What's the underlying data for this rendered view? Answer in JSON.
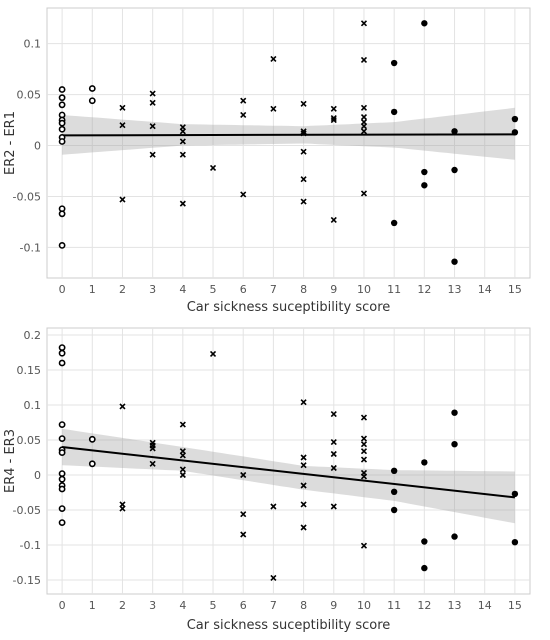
{
  "chart_data": [
    {
      "type": "scatter",
      "xlabel": "Car sickness suceptibility score",
      "ylabel": "ER2 - ER1",
      "xlim": [
        -0.5,
        15.5
      ],
      "ylim": [
        -0.13,
        0.135
      ],
      "x_ticks": [
        0,
        1,
        2,
        3,
        4,
        5,
        6,
        7,
        8,
        9,
        10,
        11,
        12,
        13,
        14,
        15
      ],
      "y_ticks": [
        -0.1,
        -0.05,
        0,
        0.05,
        0.1
      ],
      "y_tick_labels": [
        "-0.1",
        "-0.05",
        "0",
        "0.05",
        "0.1"
      ],
      "grid": true,
      "regression": {
        "x": [
          0,
          15
        ],
        "y": [
          0.01,
          0.011
        ]
      },
      "confidence_band": {
        "x": [
          0,
          4,
          8,
          11,
          15
        ],
        "upper": [
          0.03,
          0.021,
          0.019,
          0.023,
          0.037
        ],
        "lower": [
          -0.009,
          0.0,
          0.002,
          -0.002,
          -0.014
        ]
      },
      "series": [
        {
          "marker": "open-circle",
          "points": [
            [
              0,
              0.055
            ],
            [
              0,
              0.047
            ],
            [
              0,
              0.04
            ],
            [
              0,
              0.03
            ],
            [
              0,
              0.025
            ],
            [
              0,
              0.022
            ],
            [
              0,
              0.016
            ],
            [
              0,
              0.008
            ],
            [
              0,
              0.004
            ],
            [
              0,
              -0.062
            ],
            [
              0,
              -0.067
            ],
            [
              0,
              -0.098
            ],
            [
              1,
              0.056
            ],
            [
              1,
              0.044
            ]
          ]
        },
        {
          "marker": "cross",
          "points": [
            [
              2,
              0.037
            ],
            [
              2,
              0.02
            ],
            [
              2,
              -0.053
            ],
            [
              3,
              0.051
            ],
            [
              3,
              0.042
            ],
            [
              3,
              0.019
            ],
            [
              3,
              -0.009
            ],
            [
              4,
              0.018
            ],
            [
              4,
              0.014
            ],
            [
              4,
              0.004
            ],
            [
              4,
              -0.009
            ],
            [
              4,
              -0.057
            ],
            [
              5,
              -0.022
            ],
            [
              6,
              0.044
            ],
            [
              6,
              0.03
            ],
            [
              6,
              -0.048
            ],
            [
              7,
              0.085
            ],
            [
              7,
              0.036
            ],
            [
              8,
              0.041
            ],
            [
              8,
              0.014
            ],
            [
              8,
              0.012
            ],
            [
              8,
              -0.006
            ],
            [
              8,
              -0.033
            ],
            [
              8,
              -0.055
            ],
            [
              9,
              0.036
            ],
            [
              9,
              0.027
            ],
            [
              9,
              0.025
            ],
            [
              9,
              -0.073
            ],
            [
              10,
              0.12
            ],
            [
              10,
              0.084
            ],
            [
              10,
              0.037
            ],
            [
              10,
              0.028
            ],
            [
              10,
              0.023
            ],
            [
              10,
              0.019
            ],
            [
              10,
              0.014
            ],
            [
              10,
              -0.047
            ]
          ]
        },
        {
          "marker": "filled-circle",
          "points": [
            [
              11,
              0.081
            ],
            [
              11,
              0.033
            ],
            [
              11,
              -0.076
            ],
            [
              12,
              0.12
            ],
            [
              12,
              -0.026
            ],
            [
              12,
              -0.039
            ],
            [
              13,
              0.014
            ],
            [
              13,
              -0.024
            ],
            [
              13,
              -0.114
            ],
            [
              15,
              0.026
            ],
            [
              15,
              0.013
            ]
          ]
        }
      ]
    },
    {
      "type": "scatter",
      "xlabel": "Car sickness suceptibility score",
      "ylabel": "ER4 - ER3",
      "xlim": [
        -0.5,
        15.5
      ],
      "ylim": [
        -0.17,
        0.21
      ],
      "x_ticks": [
        0,
        1,
        2,
        3,
        4,
        5,
        6,
        7,
        8,
        9,
        10,
        11,
        12,
        13,
        14,
        15
      ],
      "y_ticks": [
        -0.15,
        -0.1,
        -0.05,
        0,
        0.05,
        0.1,
        0.15,
        0.2
      ],
      "y_tick_labels": [
        "-0.15",
        "-0.1",
        "-0.05",
        "0",
        "0.05",
        "0.1",
        "0.15",
        "0.2"
      ],
      "grid": true,
      "regression": {
        "x": [
          0,
          15
        ],
        "y": [
          0.04,
          -0.032
        ]
      },
      "confidence_band": {
        "x": [
          0,
          4,
          8,
          11,
          15
        ],
        "upper": [
          0.066,
          0.04,
          0.013,
          0.007,
          0.005
        ],
        "lower": [
          0.014,
          0.006,
          -0.021,
          -0.037,
          -0.069
        ]
      },
      "series": [
        {
          "marker": "open-circle",
          "points": [
            [
              0,
              0.182
            ],
            [
              0,
              0.174
            ],
            [
              0,
              0.16
            ],
            [
              0,
              0.072
            ],
            [
              0,
              0.052
            ],
            [
              0,
              0.036
            ],
            [
              0,
              0.032
            ],
            [
              0,
              0.002
            ],
            [
              0,
              -0.006
            ],
            [
              0,
              -0.015
            ],
            [
              0,
              -0.02
            ],
            [
              0,
              -0.048
            ],
            [
              0,
              -0.068
            ],
            [
              1,
              0.051
            ],
            [
              1,
              0.016
            ]
          ]
        },
        {
          "marker": "cross",
          "points": [
            [
              2,
              0.098
            ],
            [
              2,
              -0.042
            ],
            [
              2,
              -0.048
            ],
            [
              3,
              0.046
            ],
            [
              3,
              0.042
            ],
            [
              3,
              0.038
            ],
            [
              3,
              0.016
            ],
            [
              4,
              0.072
            ],
            [
              4,
              0.034
            ],
            [
              4,
              0.028
            ],
            [
              4,
              0.008
            ],
            [
              4,
              0.0
            ],
            [
              5,
              0.173
            ],
            [
              6,
              0.0
            ],
            [
              6,
              -0.056
            ],
            [
              6,
              -0.085
            ],
            [
              7,
              -0.045
            ],
            [
              7,
              -0.147
            ],
            [
              8,
              0.104
            ],
            [
              8,
              0.025
            ],
            [
              8,
              0.014
            ],
            [
              8,
              -0.015
            ],
            [
              8,
              -0.042
            ],
            [
              8,
              -0.075
            ],
            [
              9,
              0.087
            ],
            [
              9,
              0.047
            ],
            [
              9,
              0.03
            ],
            [
              9,
              0.01
            ],
            [
              9,
              -0.045
            ],
            [
              10,
              0.082
            ],
            [
              10,
              0.052
            ],
            [
              10,
              0.044
            ],
            [
              10,
              0.034
            ],
            [
              10,
              0.022
            ],
            [
              10,
              0.003
            ],
            [
              10,
              -0.002
            ],
            [
              10,
              -0.101
            ]
          ]
        },
        {
          "marker": "filled-circle",
          "points": [
            [
              11,
              0.006
            ],
            [
              11,
              -0.024
            ],
            [
              11,
              -0.05
            ],
            [
              12,
              0.018
            ],
            [
              12,
              -0.095
            ],
            [
              12,
              -0.133
            ],
            [
              13,
              0.089
            ],
            [
              13,
              0.044
            ],
            [
              13,
              -0.088
            ],
            [
              15,
              -0.027
            ],
            [
              15,
              -0.096
            ]
          ]
        }
      ]
    }
  ]
}
